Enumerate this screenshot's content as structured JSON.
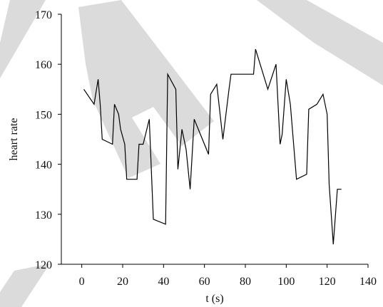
{
  "chart_data": {
    "type": "line",
    "xlabel": "t (s)",
    "ylabel": "heart rate",
    "xlim": [
      -10,
      140
    ],
    "ylim": [
      120,
      170
    ],
    "x_ticks": [
      0,
      20,
      40,
      60,
      80,
      100,
      120,
      140
    ],
    "y_ticks": [
      120,
      130,
      140,
      150,
      160,
      170
    ],
    "grid": false,
    "legend": "none",
    "line_color": "#000000",
    "series": [
      {
        "x": [
          1,
          6,
          8,
          9,
          10,
          15,
          16,
          18,
          19,
          21,
          22,
          27,
          28,
          30,
          33,
          35,
          41,
          42,
          46,
          47,
          49,
          51,
          53,
          55,
          62,
          63,
          66,
          69,
          72,
          73,
          84,
          85,
          91,
          95,
          97,
          98,
          100,
          102,
          105,
          110,
          111,
          115,
          118,
          120,
          121,
          123,
          125,
          127
        ],
        "y": [
          155,
          152,
          157,
          152,
          145,
          144,
          152,
          150,
          147,
          144,
          137,
          137,
          144,
          144,
          149,
          129,
          128,
          158,
          155,
          139,
          147,
          143,
          135,
          149,
          142,
          154,
          156,
          145,
          155,
          158,
          158,
          163,
          155,
          160,
          144,
          146,
          157,
          152,
          137,
          138,
          151,
          152,
          154,
          150,
          136,
          124,
          135,
          135
        ]
      }
    ]
  },
  "watermark": {
    "color": "#bdbdbd"
  }
}
